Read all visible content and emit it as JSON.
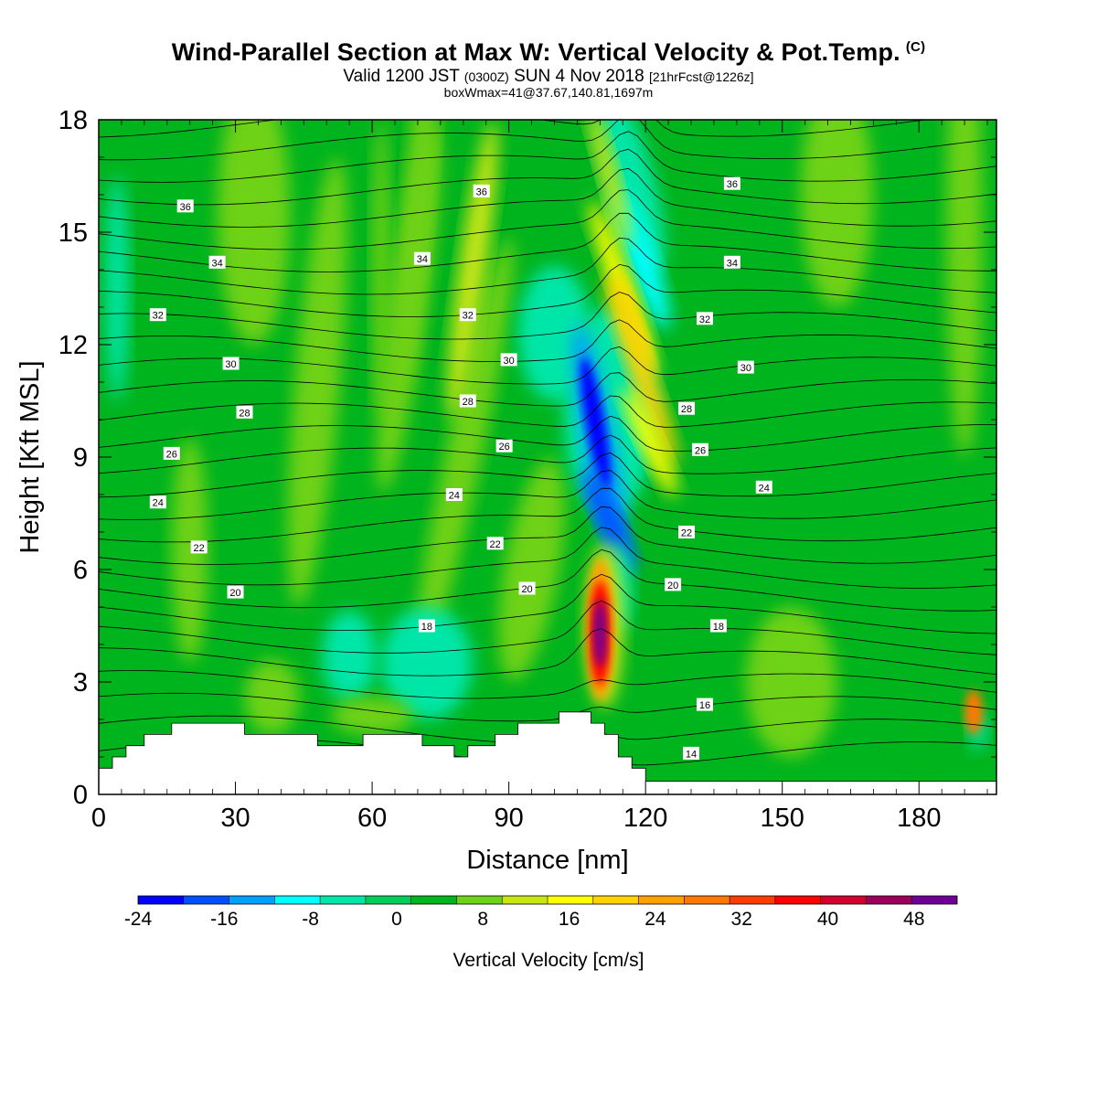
{
  "title": {
    "main": "Wind-Parallel Section at Max W: Vertical Velocity & Pot.Temp.",
    "copyright": "(C)",
    "valid_prefix": "Valid 1200 JST",
    "utc": "(0300Z)",
    "date": "SUN 4 Nov 2018",
    "forecast": "[21hrFcst@1226z]",
    "box": "boxWmax=41@37.67,140.81,1697m"
  },
  "chart_data": {
    "type": "heatmap",
    "xlabel": "Distance [nm]",
    "ylabel": "Height [Kft MSL]",
    "xlim": [
      0,
      197
    ],
    "ylim": [
      0,
      18
    ],
    "xticks": [
      "0",
      "30",
      "60",
      "90",
      "120",
      "150",
      "180"
    ],
    "yticks": [
      "0",
      "3",
      "6",
      "9",
      "12",
      "15",
      "18"
    ],
    "colorbar": {
      "label": "Vertical Velocity [cm/s]",
      "bounds": [
        -24,
        52
      ],
      "step": 4,
      "tick_labels": [
        "-24",
        "-16",
        "-8",
        "0",
        "8",
        "16",
        "24",
        "32",
        "40",
        "48"
      ],
      "colors": [
        "#0000ff",
        "#0050ff",
        "#00a0ff",
        "#00ffff",
        "#00e6a8",
        "#00cd5a",
        "#00b41e",
        "#6ed218",
        "#c8e614",
        "#ffff00",
        "#ffd200",
        "#ffa000",
        "#ff7800",
        "#ff3c00",
        "#ff0000",
        "#d2002d",
        "#9b005a",
        "#6e0096"
      ]
    },
    "terrain": [
      [
        0,
        0.7
      ],
      [
        3,
        0.7
      ],
      [
        3,
        1.0
      ],
      [
        6,
        1.0
      ],
      [
        6,
        1.3
      ],
      [
        10,
        1.3
      ],
      [
        10,
        1.6
      ],
      [
        16,
        1.6
      ],
      [
        16,
        1.9
      ],
      [
        32,
        1.9
      ],
      [
        32,
        1.6
      ],
      [
        48,
        1.6
      ],
      [
        48,
        1.3
      ],
      [
        58,
        1.3
      ],
      [
        58,
        1.6
      ],
      [
        71,
        1.6
      ],
      [
        71,
        1.3
      ],
      [
        78,
        1.3
      ],
      [
        78,
        1.0
      ],
      [
        81,
        1.0
      ],
      [
        81,
        1.3
      ],
      [
        87,
        1.3
      ],
      [
        87,
        1.6
      ],
      [
        92,
        1.6
      ],
      [
        92,
        1.9
      ],
      [
        101,
        1.9
      ],
      [
        101,
        2.2
      ],
      [
        108,
        2.2
      ],
      [
        108,
        1.9
      ],
      [
        111,
        1.9
      ],
      [
        111,
        1.6
      ],
      [
        114,
        1.6
      ],
      [
        114,
        1.0
      ],
      [
        117,
        1.0
      ],
      [
        117,
        0.7
      ],
      [
        120,
        0.7
      ],
      [
        120,
        0.35
      ],
      [
        197,
        0.35
      ]
    ],
    "contour_labels": [
      {
        "text": "36",
        "x": 19,
        "y": 15.7
      },
      {
        "text": "36",
        "x": 84,
        "y": 16.1
      },
      {
        "text": "36",
        "x": 139,
        "y": 16.3
      },
      {
        "text": "34",
        "x": 26,
        "y": 14.2
      },
      {
        "text": "34",
        "x": 71,
        "y": 14.3
      },
      {
        "text": "34",
        "x": 139,
        "y": 14.2
      },
      {
        "text": "32",
        "x": 13,
        "y": 12.8
      },
      {
        "text": "32",
        "x": 81,
        "y": 12.8
      },
      {
        "text": "32",
        "x": 133,
        "y": 12.7
      },
      {
        "text": "30",
        "x": 29,
        "y": 11.5
      },
      {
        "text": "30",
        "x": 90,
        "y": 11.6
      },
      {
        "text": "30",
        "x": 142,
        "y": 11.4
      },
      {
        "text": "28",
        "x": 32,
        "y": 10.2
      },
      {
        "text": "28",
        "x": 81,
        "y": 10.5
      },
      {
        "text": "28",
        "x": 129,
        "y": 10.3
      },
      {
        "text": "26",
        "x": 16,
        "y": 9.1
      },
      {
        "text": "26",
        "x": 89,
        "y": 9.3
      },
      {
        "text": "26",
        "x": 132,
        "y": 9.2
      },
      {
        "text": "24",
        "x": 13,
        "y": 7.8
      },
      {
        "text": "24",
        "x": 78,
        "y": 8.0
      },
      {
        "text": "24",
        "x": 146,
        "y": 8.2
      },
      {
        "text": "22",
        "x": 22,
        "y": 6.6
      },
      {
        "text": "22",
        "x": 87,
        "y": 6.7
      },
      {
        "text": "22",
        "x": 129,
        "y": 7.0
      },
      {
        "text": "20",
        "x": 30,
        "y": 5.4
      },
      {
        "text": "20",
        "x": 94,
        "y": 5.5
      },
      {
        "text": "20",
        "x": 126,
        "y": 5.6
      },
      {
        "text": "18",
        "x": 72,
        "y": 4.5
      },
      {
        "text": "18",
        "x": 136,
        "y": 4.5
      },
      {
        "text": "16",
        "x": 133,
        "y": 2.4
      },
      {
        "text": "14",
        "x": 130,
        "y": 1.1
      }
    ]
  }
}
